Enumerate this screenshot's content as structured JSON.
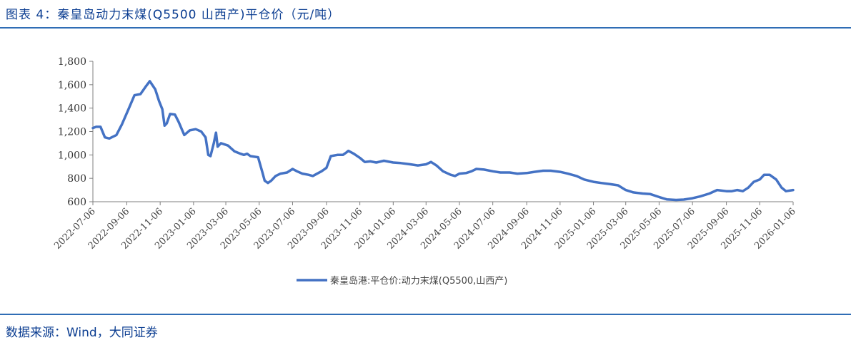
{
  "header": {
    "title": "图表 4：秦皇岛动力末煤(Q5500 山西产)平仓价（元/吨）"
  },
  "footer": {
    "source": "数据来源：Wind，大同证券"
  },
  "chart_data": {
    "type": "line",
    "title": "图表 4：秦皇岛动力末煤(Q5500 山西产)平仓价（元/吨）",
    "xlabel": "",
    "ylabel": "",
    "ylim": [
      600,
      1800
    ],
    "yticks": [
      "1,800",
      "1,600",
      "1,400",
      "1,200",
      "1,000",
      "800",
      "600"
    ],
    "ytick_values": [
      1800,
      1600,
      1400,
      1200,
      1000,
      800,
      600
    ],
    "xlim": [
      "2022-07-06",
      "2026-01-06"
    ],
    "xticks": [
      "2022-07-06",
      "2022-09-06",
      "2022-11-06",
      "2023-01-06",
      "2023-03-06",
      "2023-05-06",
      "2023-07-06",
      "2023-09-06",
      "2023-11-06",
      "2024-01-06",
      "2024-03-06",
      "2024-05-06",
      "2024-07-06",
      "2024-09-06",
      "2024-11-06",
      "2025-01-06",
      "2025-03-06",
      "2025-05-06",
      "2025-07-06",
      "2025-09-06",
      "2025-11-06",
      "2026-01-06"
    ],
    "grid": false,
    "legend_position": "bottom",
    "series": [
      {
        "name": "秦皇岛港:平仓价:动力末煤(Q5500,山西产)",
        "color": "#4472c4",
        "points": [
          [
            "2022-07-06",
            1230
          ],
          [
            "2022-07-12",
            1240
          ],
          [
            "2022-07-20",
            1240
          ],
          [
            "2022-07-28",
            1150
          ],
          [
            "2022-08-05",
            1140
          ],
          [
            "2022-08-18",
            1170
          ],
          [
            "2022-08-28",
            1260
          ],
          [
            "2022-09-10",
            1400
          ],
          [
            "2022-09-20",
            1510
          ],
          [
            "2022-10-01",
            1520
          ],
          [
            "2022-10-10",
            1580
          ],
          [
            "2022-10-18",
            1630
          ],
          [
            "2022-10-28",
            1560
          ],
          [
            "2022-11-04",
            1460
          ],
          [
            "2022-11-10",
            1390
          ],
          [
            "2022-11-14",
            1250
          ],
          [
            "2022-11-18",
            1270
          ],
          [
            "2022-11-24",
            1350
          ],
          [
            "2022-12-03",
            1345
          ],
          [
            "2022-12-10",
            1280
          ],
          [
            "2022-12-20",
            1170
          ],
          [
            "2022-12-30",
            1210
          ],
          [
            "2023-01-10",
            1220
          ],
          [
            "2023-01-20",
            1200
          ],
          [
            "2023-01-28",
            1150
          ],
          [
            "2023-02-02",
            1000
          ],
          [
            "2023-02-06",
            990
          ],
          [
            "2023-02-12",
            1100
          ],
          [
            "2023-02-16",
            1190
          ],
          [
            "2023-02-19",
            1070
          ],
          [
            "2023-02-25",
            1100
          ],
          [
            "2023-03-10",
            1080
          ],
          [
            "2023-03-22",
            1030
          ],
          [
            "2023-04-02",
            1010
          ],
          [
            "2023-04-08",
            1000
          ],
          [
            "2023-04-14",
            1010
          ],
          [
            "2023-04-20",
            990
          ],
          [
            "2023-05-04",
            980
          ],
          [
            "2023-05-12",
            850
          ],
          [
            "2023-05-16",
            780
          ],
          [
            "2023-05-22",
            760
          ],
          [
            "2023-05-28",
            780
          ],
          [
            "2023-06-05",
            820
          ],
          [
            "2023-06-14",
            840
          ],
          [
            "2023-06-26",
            850
          ],
          [
            "2023-07-06",
            880
          ],
          [
            "2023-07-14",
            860
          ],
          [
            "2023-07-24",
            840
          ],
          [
            "2023-08-04",
            830
          ],
          [
            "2023-08-12",
            820
          ],
          [
            "2023-08-20",
            840
          ],
          [
            "2023-08-28",
            860
          ],
          [
            "2023-09-06",
            890
          ],
          [
            "2023-09-14",
            990
          ],
          [
            "2023-09-26",
            1000
          ],
          [
            "2023-10-06",
            1000
          ],
          [
            "2023-10-12",
            1020
          ],
          [
            "2023-10-16",
            1035
          ],
          [
            "2023-10-26",
            1010
          ],
          [
            "2023-11-06",
            975
          ],
          [
            "2023-11-15",
            940
          ],
          [
            "2023-11-25",
            945
          ],
          [
            "2023-12-06",
            935
          ],
          [
            "2023-12-20",
            950
          ],
          [
            "2024-01-06",
            935
          ],
          [
            "2024-01-20",
            930
          ],
          [
            "2024-02-06",
            920
          ],
          [
            "2024-02-20",
            910
          ],
          [
            "2024-03-06",
            920
          ],
          [
            "2024-03-15",
            940
          ],
          [
            "2024-03-25",
            910
          ],
          [
            "2024-04-06",
            860
          ],
          [
            "2024-04-20",
            830
          ],
          [
            "2024-04-28",
            820
          ],
          [
            "2024-05-06",
            840
          ],
          [
            "2024-05-18",
            845
          ],
          [
            "2024-05-28",
            860
          ],
          [
            "2024-06-06",
            880
          ],
          [
            "2024-06-20",
            875
          ],
          [
            "2024-07-06",
            860
          ],
          [
            "2024-07-20",
            850
          ],
          [
            "2024-08-06",
            850
          ],
          [
            "2024-08-20",
            840
          ],
          [
            "2024-09-06",
            845
          ],
          [
            "2024-09-20",
            855
          ],
          [
            "2024-10-06",
            865
          ],
          [
            "2024-10-20",
            865
          ],
          [
            "2024-11-06",
            855
          ],
          [
            "2024-11-20",
            840
          ],
          [
            "2024-12-06",
            820
          ],
          [
            "2024-12-20",
            790
          ],
          [
            "2025-01-06",
            770
          ],
          [
            "2025-01-20",
            760
          ],
          [
            "2025-02-06",
            750
          ],
          [
            "2025-02-20",
            740
          ],
          [
            "2025-03-06",
            700
          ],
          [
            "2025-03-20",
            680
          ],
          [
            "2025-04-06",
            670
          ],
          [
            "2025-04-20",
            665
          ],
          [
            "2025-05-06",
            640
          ],
          [
            "2025-05-20",
            620
          ],
          [
            "2025-06-06",
            615
          ],
          [
            "2025-06-20",
            618
          ],
          [
            "2025-07-06",
            630
          ],
          [
            "2025-07-20",
            645
          ],
          [
            "2025-08-06",
            670
          ],
          [
            "2025-08-20",
            700
          ],
          [
            "2025-09-06",
            690
          ],
          [
            "2025-09-16",
            690
          ],
          [
            "2025-09-26",
            700
          ],
          [
            "2025-10-06",
            690
          ],
          [
            "2025-10-16",
            720
          ],
          [
            "2025-10-26",
            770
          ],
          [
            "2025-11-06",
            790
          ],
          [
            "2025-11-14",
            830
          ],
          [
            "2025-11-24",
            830
          ],
          [
            "2025-12-06",
            790
          ],
          [
            "2025-12-16",
            720
          ],
          [
            "2025-12-24",
            690
          ],
          [
            "2026-01-06",
            700
          ]
        ]
      }
    ]
  }
}
